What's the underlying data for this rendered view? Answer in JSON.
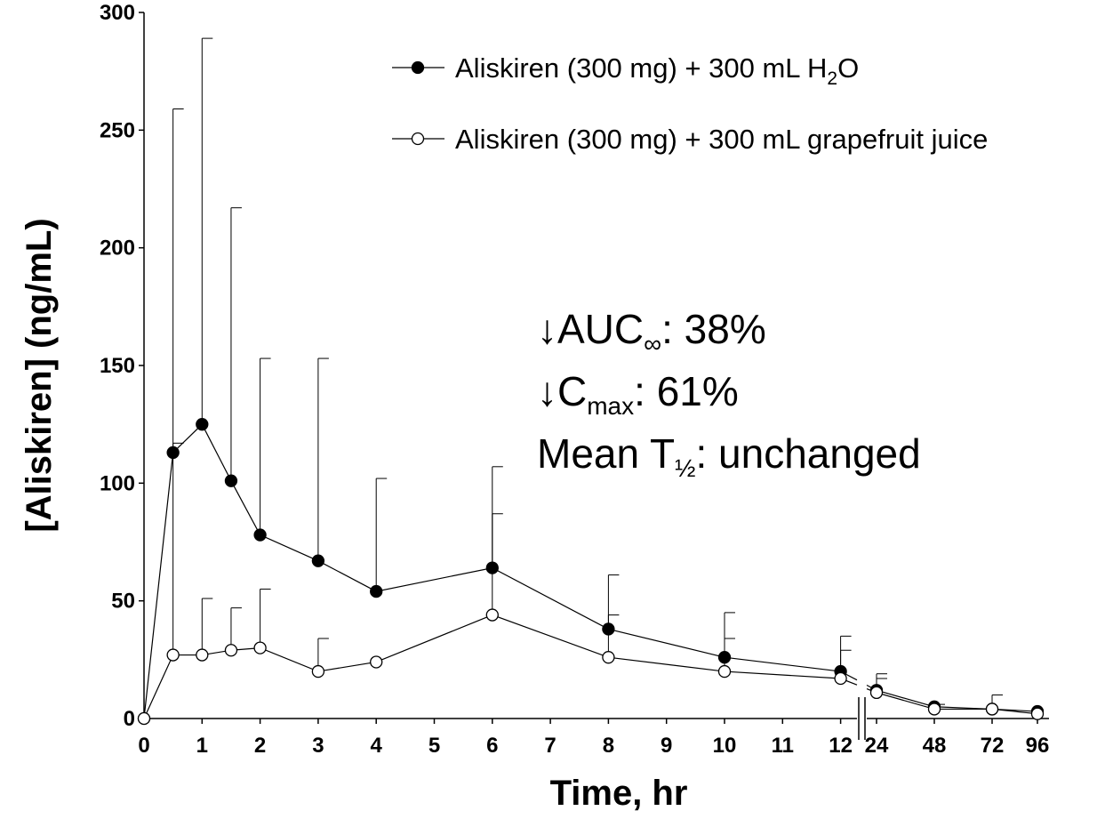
{
  "chart_data": {
    "type": "line",
    "title": "",
    "xlabel": "Time, hr",
    "ylabel": "[Aliskiren]  (ng/mL)",
    "ylim": [
      0,
      300
    ],
    "y_ticks": [
      "0",
      "50",
      "100",
      "150",
      "200",
      "250",
      "300"
    ],
    "x_ticks": [
      "0",
      "1",
      "2",
      "3",
      "4",
      "5",
      "6",
      "7",
      "8",
      "9",
      "10",
      "11",
      "12",
      "24",
      "48",
      "72",
      "96"
    ],
    "x_axis_break": "between 12 and 24",
    "grid": false,
    "legend_position": "top-right",
    "series": [
      {
        "name": "Aliskiren (300 mg) + 300 mL H2O",
        "legend_main": "Aliskiren (300 mg) + 300 mL H",
        "legend_sub": "2",
        "legend_tail": "O",
        "marker": "filled-circle",
        "x": [
          0,
          0.5,
          1,
          1.5,
          2,
          3,
          4,
          6,
          8,
          10,
          12,
          24,
          48,
          72,
          96
        ],
        "y": [
          0,
          113,
          125,
          101,
          78,
          67,
          54,
          64,
          38,
          26,
          20,
          12,
          5,
          4,
          3
        ],
        "error_upper": [
          0,
          259,
          289,
          217,
          153,
          153,
          102,
          107,
          61,
          45,
          35,
          19,
          6,
          10,
          3
        ]
      },
      {
        "name": "Aliskiren (300 mg) + 300 mL grapefruit juice",
        "legend_main": "Aliskiren (300 mg) + 300 mL grapefruit juice",
        "marker": "open-circle",
        "x": [
          0,
          0.5,
          1,
          1.5,
          2,
          3,
          4,
          6,
          8,
          10,
          12,
          24,
          48,
          72,
          96
        ],
        "y": [
          0,
          27,
          27,
          29,
          30,
          20,
          24,
          44,
          26,
          20,
          17,
          11,
          4,
          4,
          2
        ],
        "error_upper": [
          0,
          117,
          51,
          47,
          55,
          34,
          24,
          87,
          44,
          34,
          29,
          17,
          4,
          4,
          2
        ]
      }
    ],
    "annotations": [
      {
        "prefix": "↓AUC",
        "sub": "∞",
        "suffix": ": 38%"
      },
      {
        "prefix": "↓C",
        "sub": "max",
        "suffix": ": 61%"
      },
      {
        "prefix": "Mean T",
        "sub": "½",
        "suffix": ": unchanged"
      }
    ],
    "colors": {
      "line": "#000000",
      "filled_marker": "#000000",
      "open_marker": "#ffffff"
    }
  }
}
